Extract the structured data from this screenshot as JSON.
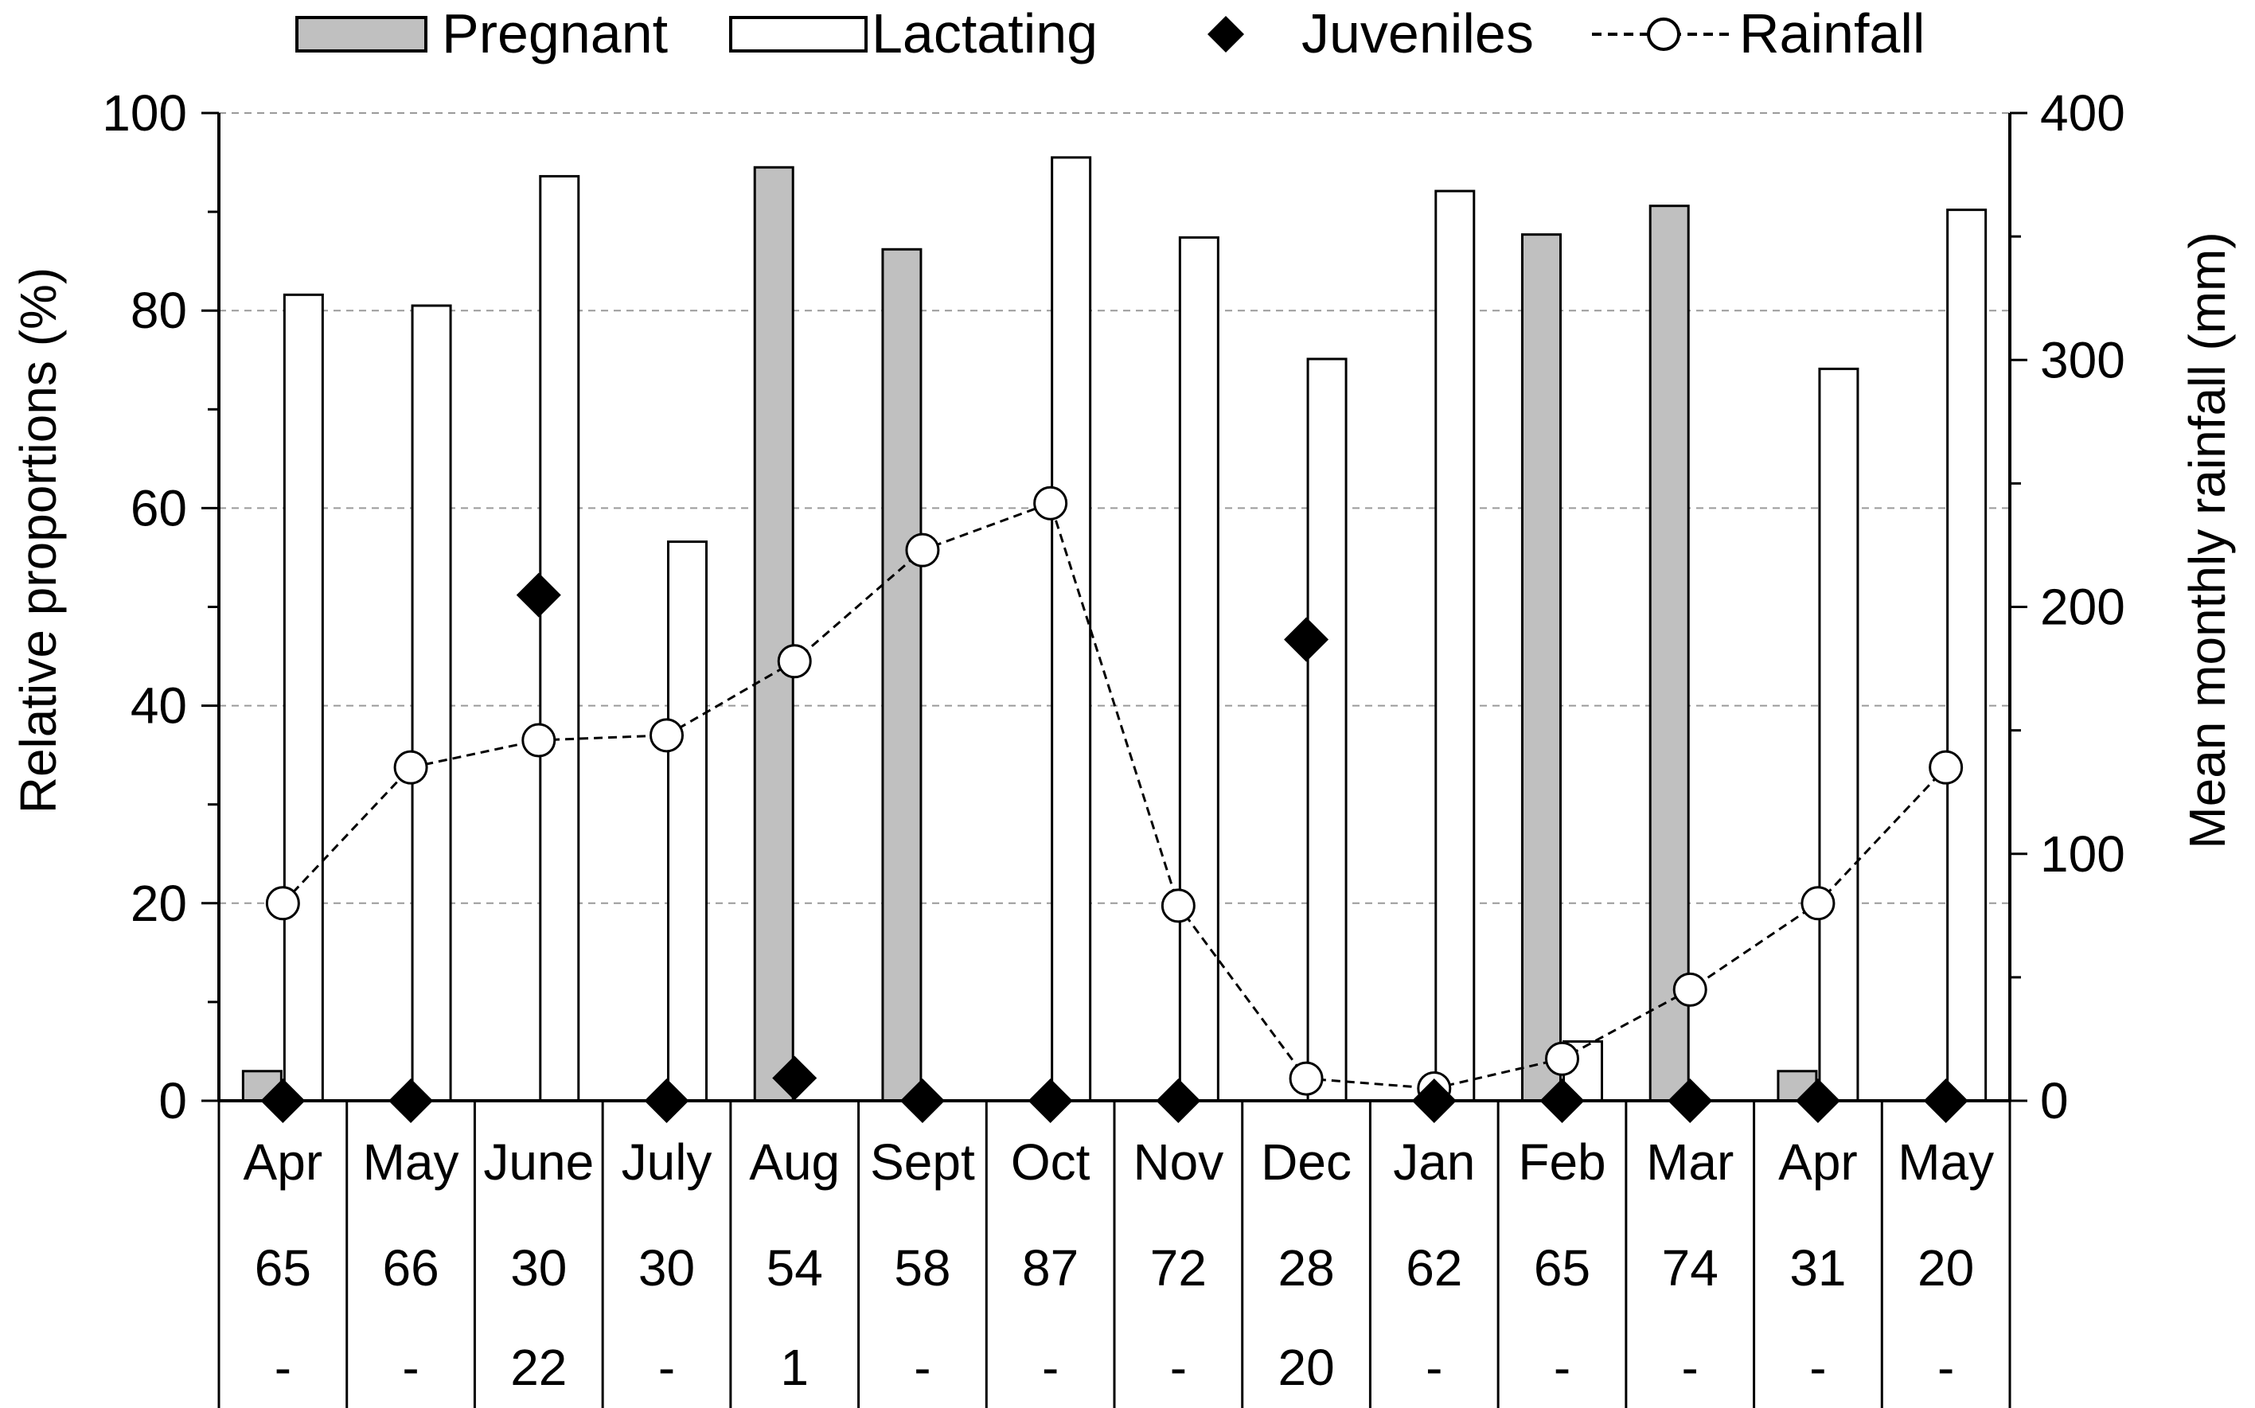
{
  "chart_data": {
    "type": "bar",
    "categories": [
      "Apr",
      "May",
      "June",
      "July",
      "Aug",
      "Sept",
      "Oct",
      "Nov",
      "Dec",
      "Jan",
      "Feb",
      "Mar",
      "Apr",
      "May"
    ],
    "sample_sizes": [
      "65",
      "66",
      "30",
      "30",
      "54",
      "58",
      "87",
      "72",
      "28",
      "62",
      "65",
      "74",
      "31",
      "20"
    ],
    "juvenile_counts": [
      "-",
      "-",
      "22",
      "-",
      "1",
      "-",
      "-",
      "-",
      "20",
      "-",
      "-",
      "-",
      "-",
      "-"
    ],
    "series": [
      {
        "name": "Pregnant",
        "type": "bar",
        "axis": "left",
        "color": "#c0c0c0",
        "values": [
          3,
          0,
          0,
          0,
          94.5,
          86.2,
          0,
          0,
          0,
          0,
          87.7,
          90.6,
          3,
          0
        ]
      },
      {
        "name": "Lactating",
        "type": "bar",
        "axis": "left",
        "color": "#ffffff",
        "values": [
          81.6,
          80.5,
          93.6,
          56.6,
          0,
          0,
          95.5,
          87.4,
          75.1,
          92.1,
          6,
          0,
          74.1,
          90.2
        ]
      },
      {
        "name": "Juveniles",
        "type": "scatter",
        "axis": "left",
        "marker": "diamond",
        "color": "#000000",
        "values": [
          0,
          0,
          51.2,
          0,
          2.3,
          0,
          0,
          0,
          46.7,
          0,
          0,
          0,
          0,
          0
        ]
      },
      {
        "name": "Rainfall",
        "type": "line",
        "axis": "right",
        "marker": "circle-open",
        "line_style": "dashed",
        "values": [
          80,
          135,
          146,
          148,
          178,
          223,
          242,
          79,
          9,
          5,
          17,
          45,
          80,
          135
        ]
      }
    ],
    "legend": [
      {
        "label": "Pregnant",
        "swatch": "bar-gray"
      },
      {
        "label": "Lactating",
        "swatch": "bar-white"
      },
      {
        "label": "Juveniles",
        "swatch": "diamond"
      },
      {
        "label": "Rainfall",
        "swatch": "dashed-circle"
      }
    ],
    "ylabel": "Relative proportions (%)",
    "y2label": "Mean monthly rainfall (mm)",
    "ylim": [
      0,
      100
    ],
    "y2lim": [
      0,
      400
    ],
    "yticks": [
      0,
      20,
      40,
      60,
      80,
      100
    ],
    "y2ticks": [
      0,
      100,
      200,
      300,
      400
    ],
    "grid": "horizontal dashed",
    "legend_position": "top"
  }
}
